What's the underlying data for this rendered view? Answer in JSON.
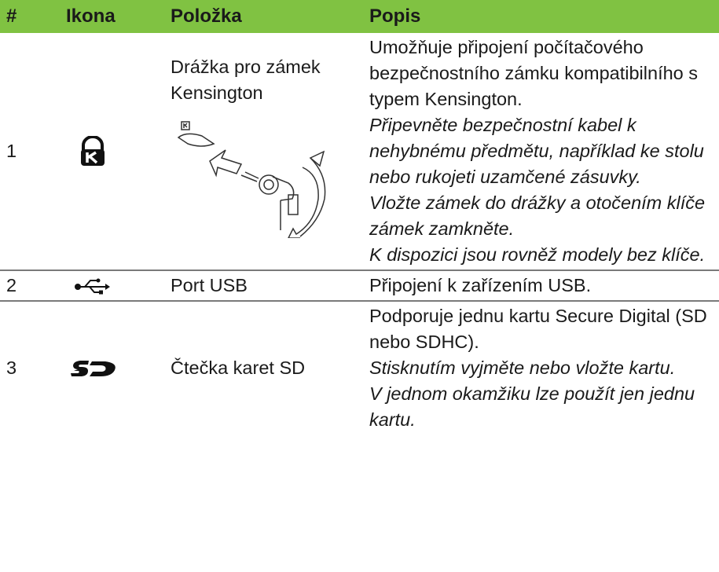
{
  "table": {
    "header": [
      "#",
      "Ikona",
      "Položka",
      "Popis"
    ],
    "rows": [
      {
        "number": "1",
        "item": "Drážka pro zámek Kensington",
        "description": "Umožňuje připojení počítačového bezpečnostního zámku kompatibilního s typem Kensington.",
        "notes": [
          "Připevněte bezpečnostní kabel k nehybnému předmětu, například ke stolu nebo rukojeti uzamčené zásuvky.",
          "Vložte zámek do drážky a otočením klíče zámek zamkněte.",
          "K dispozici jsou rovněž modely bez klíče."
        ]
      },
      {
        "number": "2",
        "item": "Port USB",
        "description": "Připojení k zařízením USB.",
        "notes": []
      },
      {
        "number": "3",
        "item": "Čtečka karet SD",
        "description": "Podporuje jednu kartu Secure Digital (SD nebo SDHC).",
        "notes": [
          "Stisknutím vyjměte nebo vložte kartu.",
          "V jednom okamžiku lze použít jen jednu kartu."
        ]
      }
    ]
  }
}
